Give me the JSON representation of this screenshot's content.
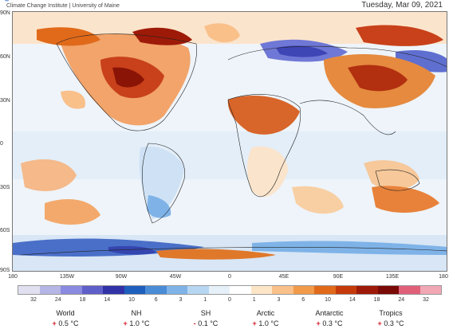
{
  "header": {
    "credit": "Climate Change Institute | University of Maine",
    "date": "Tuesday, Mar 09, 2021"
  },
  "map": {
    "lat_labels": [
      "90N",
      "60N",
      "30N",
      "0",
      "30S",
      "60S",
      "90S"
    ],
    "lon_labels": [
      "180",
      "135W",
      "90W",
      "45W",
      "0",
      "45E",
      "90E",
      "135E",
      "180"
    ]
  },
  "legend": {
    "labels": [
      "32",
      "24",
      "18",
      "14",
      "10",
      "6",
      "3",
      "1",
      "0",
      "1",
      "3",
      "6",
      "10",
      "14",
      "18",
      "24",
      "32"
    ],
    "colors": [
      "#e0e0f0",
      "#b5b5e6",
      "#8a8ae0",
      "#5f5fc9",
      "#3232a8",
      "#1e5fbd",
      "#4a8cd6",
      "#7fb3e8",
      "#b6d6f2",
      "#e6f0f8",
      "#ffffff",
      "#fde6c8",
      "#f9c08a",
      "#f09a4a",
      "#e06a1a",
      "#c43a0a",
      "#9e1a08",
      "#7a0a05",
      "#e0607a",
      "#f2a7b5"
    ]
  },
  "stats": [
    {
      "name": "World",
      "sign": "+",
      "value": "0.5 °C"
    },
    {
      "name": "NH",
      "sign": "+",
      "value": "1.0 °C"
    },
    {
      "name": "SH",
      "sign": "-",
      "value": "0.1 °C"
    },
    {
      "name": "Arctic",
      "sign": "+",
      "value": "1.0 °C"
    },
    {
      "name": "Antarctic",
      "sign": "+",
      "value": "0.3 °C"
    },
    {
      "name": "Tropics",
      "sign": "+",
      "value": "0.3 °C"
    }
  ]
}
